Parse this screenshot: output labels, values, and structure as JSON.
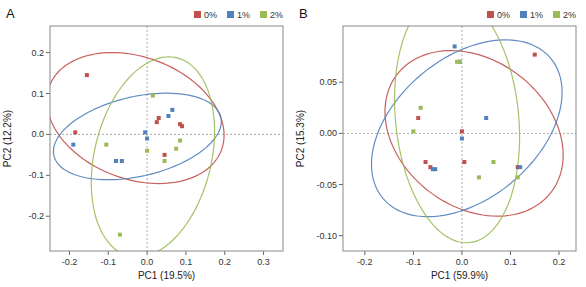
{
  "chart_data": [
    {
      "type": "scatter",
      "title": "A",
      "xlabel": "PC1 (19.5%)",
      "ylabel": "PC2 (12.2%)",
      "xlim": [
        -0.25,
        0.35
      ],
      "ylim": [
        -0.285,
        0.265
      ],
      "xticks": [
        -0.2,
        -0.1,
        {
          "value": 0.0,
          "label": "0.0"
        },
        0.1,
        0.2,
        0.3
      ],
      "yticks": [
        -0.2,
        -0.1,
        {
          "value": 0.0,
          "label": "0.0"
        },
        0.1,
        0.2
      ],
      "grid": false,
      "legend": "upper right",
      "marker": "square",
      "reference_lines": {
        "x": [
          0
        ],
        "y": [
          0
        ]
      },
      "series": [
        {
          "name": "0%",
          "color": "#c0504d",
          "x": [
            -0.185,
            -0.155,
            0.03,
            0.025,
            0.085,
            0.09,
            0.045
          ],
          "values": [
            0.005,
            0.145,
            0.04,
            0.03,
            0.025,
            0.02,
            -0.05
          ],
          "ellipse": {
            "cx": -0.03,
            "cy": 0.04,
            "width": 0.47,
            "height": 0.3,
            "angle": -18
          }
        },
        {
          "name": "1%",
          "color": "#4f81bd",
          "x": [
            -0.19,
            -0.08,
            0.0,
            -0.005,
            0.055,
            0.065,
            -0.065
          ],
          "values": [
            -0.025,
            -0.065,
            -0.01,
            0.005,
            0.045,
            0.06,
            -0.065
          ],
          "ellipse": {
            "cx": -0.025,
            "cy": -0.005,
            "width": 0.44,
            "height": 0.195,
            "angle": 12
          }
        },
        {
          "name": "2%",
          "color": "#9bbb59",
          "x": [
            -0.105,
            0.015,
            0.0,
            0.045,
            0.075,
            0.085,
            -0.07
          ],
          "values": [
            -0.025,
            0.095,
            -0.04,
            -0.065,
            -0.035,
            -0.015,
            -0.245
          ],
          "ellipse": {
            "cx": 0.015,
            "cy": -0.055,
            "width": 0.3,
            "height": 0.5,
            "angle": -15
          }
        }
      ]
    },
    {
      "type": "scatter",
      "title": "B",
      "xlabel": "PC1 (59.9%)",
      "ylabel": "PC2 (15.3%)",
      "xlim": [
        -0.245,
        0.235
      ],
      "ylim": [
        -0.115,
        0.105
      ],
      "xticks": [
        -0.2,
        -0.1,
        {
          "value": 0.0,
          "label": "0.0"
        },
        0.1,
        0.2
      ],
      "yticks": [
        {
          "value": -0.1,
          "label": "-0.10"
        },
        -0.05,
        {
          "value": 0.0,
          "label": "0.00"
        },
        0.05
      ],
      "grid": false,
      "legend": "upper right",
      "marker": "square",
      "reference_lines": {
        "x": [
          0
        ],
        "y": [
          0
        ]
      },
      "series": [
        {
          "name": "0%",
          "color": "#c0504d",
          "x": [
            -0.09,
            -0.075,
            -0.065,
            0.0,
            0.115,
            0.15,
            0.005
          ],
          "values": [
            0.015,
            -0.028,
            -0.033,
            0.002,
            -0.033,
            0.077,
            -0.028
          ],
          "ellipse": {
            "cx": 0.025,
            "cy": 0.0,
            "width": 0.37,
            "height": 0.155,
            "angle": -8
          }
        },
        {
          "name": "1%",
          "color": "#4f81bd",
          "x": [
            -0.015,
            -0.055,
            -0.06,
            0.05,
            0.12,
            0.0,
            -0.005
          ],
          "values": [
            0.085,
            -0.035,
            -0.035,
            0.015,
            -0.033,
            -0.005,
            0.07
          ],
          "ellipse": {
            "cx": 0.01,
            "cy": 0.005,
            "width": 0.4,
            "height": 0.155,
            "angle": 12
          }
        },
        {
          "name": "2%",
          "color": "#9bbb59",
          "x": [
            -0.1,
            -0.085,
            0.035,
            0.065,
            0.115,
            -0.005,
            -0.01
          ],
          "values": [
            0.002,
            0.025,
            -0.043,
            -0.028,
            -0.043,
            0.07,
            0.07
          ],
          "ellipse": {
            "cx": -0.01,
            "cy": 0.015,
            "width": 0.27,
            "height": 0.23,
            "angle": -35
          }
        }
      ]
    }
  ]
}
